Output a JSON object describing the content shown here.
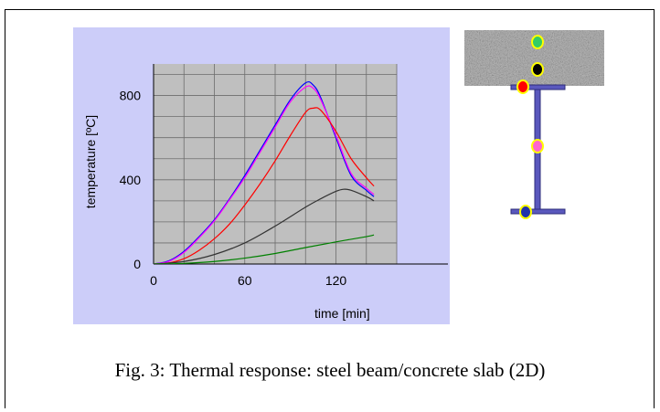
{
  "figure": {
    "caption": "Fig. 3: Thermal response: steel beam/concrete slab (2D)"
  },
  "colors": {
    "panel_background": "#cccdf9",
    "plot_background": "#bfbfbf",
    "grid": "#6d6d6d",
    "concrete": "#a6a6a6",
    "steel_section": "#5a58bd",
    "marker_outline": "#ffff00"
  },
  "chart_data": {
    "type": "line",
    "xlabel": "time [min]",
    "ylabel": "temperature [ºC]",
    "xlim": [
      0,
      160
    ],
    "ylim": [
      0,
      950
    ],
    "x_ticks": [
      0,
      60,
      120
    ],
    "y_ticks": [
      0,
      400,
      800
    ],
    "grid": true,
    "series": [
      {
        "color": "#0000ff",
        "marker": "bottom-flange",
        "x": [
          0,
          10,
          20,
          30,
          40,
          50,
          60,
          70,
          80,
          90,
          100,
          105,
          110,
          120,
          130,
          140,
          145
        ],
        "y": [
          0,
          15,
          60,
          130,
          210,
          310,
          420,
          540,
          660,
          780,
          860,
          850,
          790,
          600,
          420,
          350,
          320
        ]
      },
      {
        "color": "#ff00ff",
        "marker": "web",
        "x": [
          0,
          10,
          20,
          30,
          40,
          50,
          60,
          70,
          80,
          90,
          100,
          105,
          110,
          120,
          130,
          140,
          145
        ],
        "y": [
          0,
          12,
          55,
          125,
          205,
          305,
          410,
          530,
          650,
          770,
          840,
          835,
          780,
          610,
          430,
          360,
          330
        ]
      },
      {
        "color": "#ff0000",
        "marker": "top-flange",
        "x": [
          0,
          10,
          20,
          30,
          40,
          50,
          60,
          70,
          80,
          90,
          100,
          105,
          110,
          120,
          130,
          140,
          145
        ],
        "y": [
          0,
          5,
          25,
          65,
          120,
          190,
          280,
          380,
          490,
          610,
          720,
          740,
          730,
          630,
          500,
          410,
          370
        ]
      },
      {
        "color": "#333333",
        "marker": "slab-bottom",
        "x": [
          0,
          20,
          40,
          60,
          80,
          100,
          110,
          120,
          125,
          130,
          140,
          145
        ],
        "y": [
          0,
          12,
          45,
          100,
          180,
          270,
          310,
          345,
          355,
          350,
          320,
          300
        ]
      },
      {
        "color": "#008000",
        "marker": "slab-middle",
        "x": [
          0,
          20,
          40,
          60,
          80,
          100,
          120,
          140,
          145
        ],
        "y": [
          0,
          3,
          12,
          28,
          50,
          78,
          105,
          130,
          138
        ]
      }
    ]
  },
  "section": {
    "markers": [
      {
        "name": "slab-middle",
        "color": "#33cc66"
      },
      {
        "name": "slab-bottom",
        "color": "#000000"
      },
      {
        "name": "top-flange",
        "color": "#ff0000"
      },
      {
        "name": "web",
        "color": "#ff66cc"
      },
      {
        "name": "bottom-flange",
        "color": "#2233aa"
      }
    ]
  }
}
